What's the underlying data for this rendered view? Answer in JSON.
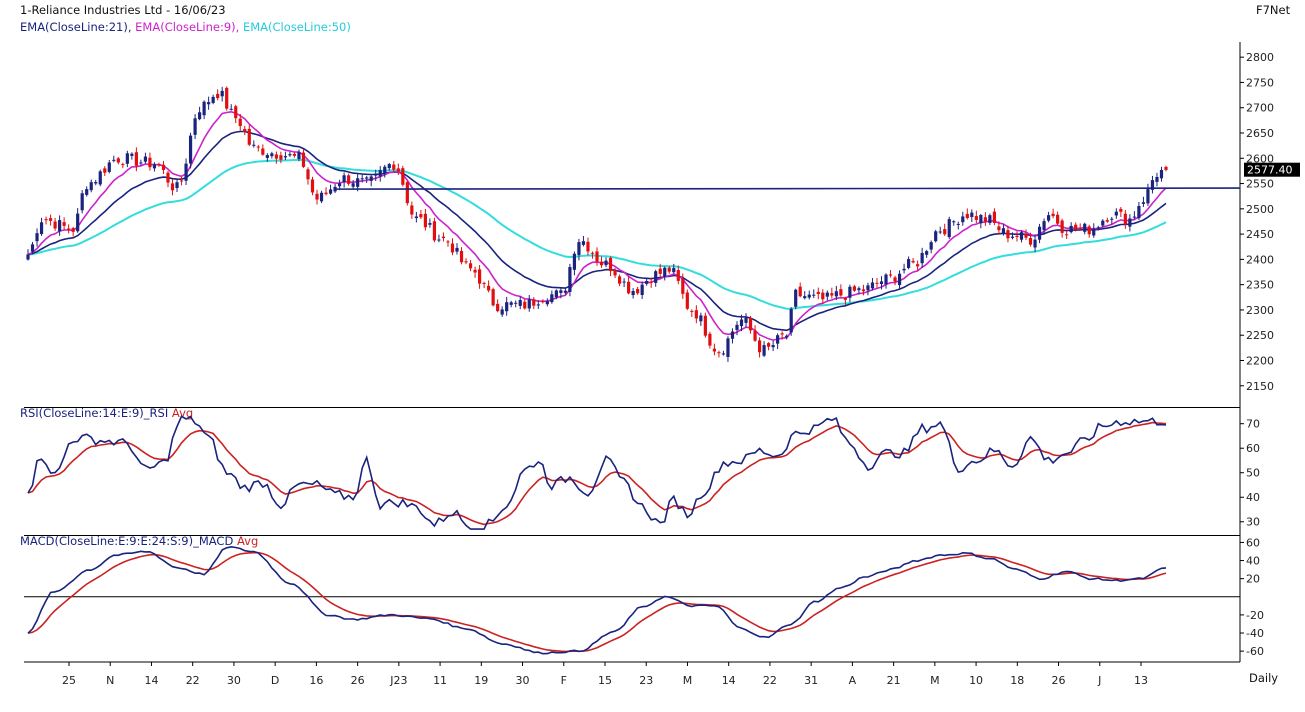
{
  "header": {
    "title": "1-Reliance Industries Ltd - 16/06/23",
    "brand": "F7Net",
    "ema_labels": [
      {
        "text": "EMA(CloseLine:21),",
        "color": "#1a237e"
      },
      {
        "text": "EMA(CloseLine:9),",
        "color": "#cc22cc"
      },
      {
        "text": "EMA(CloseLine:50)",
        "color": "#22ccdd"
      }
    ]
  },
  "footer": {
    "period": "Daily"
  },
  "rsi_panel": {
    "title": "RSI(CloseLine:14:E:9)_RSI",
    "avg_label": "Avg"
  },
  "macd_panel": {
    "title": "MACD(CloseLine:E:9:E:24:S:9)_MACD",
    "avg_label": "Avg"
  },
  "colors": {
    "up": "#1a237e",
    "down": "#e01010",
    "ema21": "#1a237e",
    "ema9": "#cc22cc",
    "ema50": "#33dddd",
    "rsi": "#1a237e",
    "rsi_avg": "#cc2222",
    "macd": "#1a237e",
    "macd_avg": "#cc2222",
    "trendline": "#1a237e"
  },
  "chart_data": {
    "type": "candlestick",
    "last_price_label": "2577.40",
    "price_axis": {
      "ylim": [
        2110,
        2830
      ],
      "ticks": [
        2150,
        2200,
        2250,
        2300,
        2350,
        2400,
        2450,
        2500,
        2550,
        2600,
        2650,
        2700,
        2750,
        2800
      ]
    },
    "rsi_axis": {
      "ylim": [
        25,
        76
      ],
      "ticks": [
        30,
        40,
        50,
        60,
        70
      ]
    },
    "macd_axis": {
      "ylim": [
        -72,
        66
      ],
      "ticks": [
        60,
        40,
        20,
        -20,
        -40,
        -60
      ],
      "zero_line": 0
    },
    "x_ticks": [
      "25",
      "N",
      "14",
      "22",
      "30",
      "D",
      "16",
      "26",
      "J23",
      "11",
      "19",
      "30",
      "F",
      "15",
      "23",
      "M",
      "14",
      "22",
      "31",
      "A",
      "21",
      "M",
      "10",
      "18",
      "26",
      "J",
      "13"
    ],
    "trendline": {
      "start_price": 2539,
      "end_price": 2541
    },
    "price_keypoints": [
      [
        0,
        2410
      ],
      [
        3,
        2480
      ],
      [
        10,
        2460
      ],
      [
        13,
        2550
      ],
      [
        20,
        2600
      ],
      [
        28,
        2590
      ],
      [
        33,
        2540
      ],
      [
        38,
        2700
      ],
      [
        42,
        2730
      ],
      [
        46,
        2680
      ],
      [
        50,
        2620
      ],
      [
        55,
        2610
      ],
      [
        60,
        2600
      ],
      [
        64,
        2520
      ],
      [
        70,
        2560
      ],
      [
        75,
        2550
      ],
      [
        81,
        2590
      ],
      [
        86,
        2480
      ],
      [
        92,
        2440
      ],
      [
        98,
        2380
      ],
      [
        104,
        2310
      ],
      [
        110,
        2310
      ],
      [
        115,
        2330
      ],
      [
        118,
        2330
      ],
      [
        122,
        2440
      ],
      [
        128,
        2390
      ],
      [
        134,
        2340
      ],
      [
        139,
        2370
      ],
      [
        142,
        2380
      ],
      [
        147,
        2300
      ],
      [
        153,
        2220
      ],
      [
        158,
        2280
      ],
      [
        163,
        2220
      ],
      [
        168,
        2250
      ],
      [
        170,
        2330
      ],
      [
        176,
        2320
      ],
      [
        180,
        2330
      ],
      [
        185,
        2340
      ],
      [
        190,
        2360
      ],
      [
        196,
        2390
      ],
      [
        202,
        2460
      ],
      [
        208,
        2490
      ],
      [
        212,
        2480
      ],
      [
        217,
        2450
      ],
      [
        222,
        2440
      ],
      [
        226,
        2490
      ],
      [
        230,
        2460
      ],
      [
        235,
        2460
      ],
      [
        240,
        2490
      ],
      [
        244,
        2480
      ],
      [
        247,
        2520
      ],
      [
        250,
        2570
      ],
      [
        252,
        2577
      ]
    ],
    "rsi_keypoints": [
      [
        0,
        43
      ],
      [
        3,
        57
      ],
      [
        6,
        49
      ],
      [
        10,
        64
      ],
      [
        13,
        64
      ],
      [
        17,
        63
      ],
      [
        22,
        62
      ],
      [
        26,
        51
      ],
      [
        30,
        54
      ],
      [
        34,
        72
      ],
      [
        37,
        71
      ],
      [
        40,
        64
      ],
      [
        44,
        50
      ],
      [
        48,
        44
      ],
      [
        52,
        46
      ],
      [
        56,
        37
      ],
      [
        60,
        45
      ],
      [
        64,
        45
      ],
      [
        68,
        41
      ],
      [
        72,
        40
      ],
      [
        75,
        55
      ],
      [
        78,
        37
      ],
      [
        82,
        38
      ],
      [
        86,
        36
      ],
      [
        90,
        29
      ],
      [
        94,
        34
      ],
      [
        98,
        28
      ],
      [
        102,
        29
      ],
      [
        106,
        37
      ],
      [
        110,
        51
      ],
      [
        113,
        55
      ],
      [
        116,
        45
      ],
      [
        120,
        48
      ],
      [
        124,
        42
      ],
      [
        128,
        55
      ],
      [
        132,
        46
      ],
      [
        136,
        36
      ],
      [
        140,
        29
      ],
      [
        143,
        39
      ],
      [
        146,
        33
      ],
      [
        150,
        43
      ],
      [
        154,
        54
      ],
      [
        158,
        55
      ],
      [
        162,
        59
      ],
      [
        166,
        57
      ],
      [
        170,
        66
      ],
      [
        174,
        68
      ],
      [
        178,
        72
      ],
      [
        182,
        62
      ],
      [
        186,
        53
      ],
      [
        190,
        58
      ],
      [
        194,
        58
      ],
      [
        198,
        68
      ],
      [
        202,
        70
      ],
      [
        206,
        52
      ],
      [
        210,
        55
      ],
      [
        214,
        59
      ],
      [
        218,
        53
      ],
      [
        222,
        64
      ],
      [
        226,
        55
      ],
      [
        230,
        58
      ],
      [
        234,
        63
      ],
      [
        238,
        69
      ],
      [
        242,
        71
      ]
    ],
    "macd_keypoints": [
      [
        0,
        -40
      ],
      [
        4,
        5
      ],
      [
        10,
        30
      ],
      [
        14,
        46
      ],
      [
        19,
        50
      ],
      [
        24,
        32
      ],
      [
        28,
        25
      ],
      [
        32,
        55
      ],
      [
        36,
        50
      ],
      [
        42,
        15
      ],
      [
        48,
        -20
      ],
      [
        52,
        -25
      ],
      [
        58,
        -20
      ],
      [
        64,
        -24
      ],
      [
        70,
        -35
      ],
      [
        76,
        -52
      ],
      [
        82,
        -62
      ],
      [
        88,
        -60
      ],
      [
        94,
        -38
      ],
      [
        98,
        -12
      ],
      [
        102,
        0
      ],
      [
        106,
        -10
      ],
      [
        110,
        -10
      ],
      [
        114,
        -35
      ],
      [
        118,
        -45
      ],
      [
        122,
        -30
      ],
      [
        126,
        -5
      ],
      [
        130,
        10
      ],
      [
        134,
        22
      ],
      [
        138,
        30
      ],
      [
        142,
        40
      ],
      [
        146,
        46
      ],
      [
        150,
        48
      ],
      [
        154,
        42
      ],
      [
        158,
        30
      ],
      [
        162,
        20
      ],
      [
        166,
        28
      ],
      [
        170,
        20
      ],
      [
        174,
        18
      ],
      [
        178,
        20
      ],
      [
        182,
        32
      ]
    ]
  }
}
